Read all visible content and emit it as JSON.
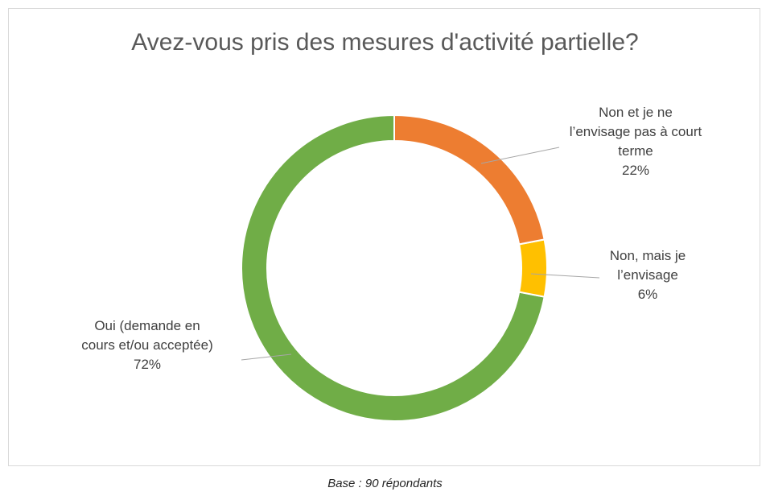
{
  "chart_data": {
    "type": "donut",
    "title": "Avez-vous pris des mesures d'activité partielle?",
    "categories": [
      "Non et je ne l’envisage pas à court terme",
      "Non, mais je l’envisage",
      "Oui (demande en cours et/ou acceptée)"
    ],
    "values": [
      22,
      6,
      72
    ],
    "value_labels": [
      "22%",
      "6%",
      "72%"
    ],
    "colors": [
      "#ed7d31",
      "#ffc000",
      "#70ad47"
    ],
    "note": "Base : 90 répondants"
  }
}
